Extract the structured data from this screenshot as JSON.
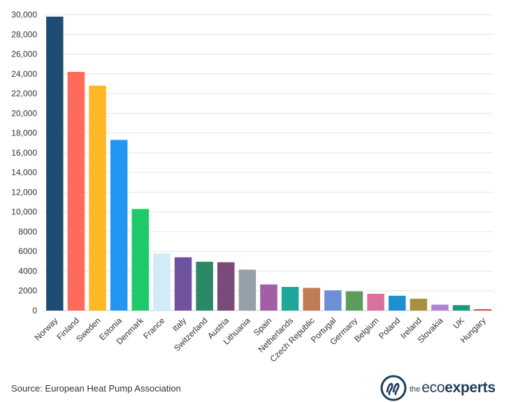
{
  "chart_data": {
    "type": "bar",
    "title": "",
    "xlabel": "",
    "ylabel": "",
    "ylim": [
      0,
      30000
    ],
    "yticks": [
      0,
      2000,
      4000,
      6000,
      8000,
      10000,
      12000,
      14000,
      16000,
      18000,
      20000,
      22000,
      24000,
      26000,
      28000,
      30000
    ],
    "ytick_labels": [
      "0",
      "2000",
      "4000",
      "6000",
      "8000",
      "10,000",
      "12,000",
      "14,000",
      "16,000",
      "18,000",
      "20,000",
      "22,000",
      "24,000",
      "26,000",
      "28,000",
      "30,000"
    ],
    "grid": true,
    "categories": [
      "Norway",
      "Finland",
      "Sweden",
      "Estonia",
      "Denmark",
      "France",
      "Italy",
      "Switzerland",
      "Austria",
      "Lithuania",
      "Spain",
      "Netherlands",
      "Czech Republic",
      "Portugal",
      "Germany",
      "Belgium",
      "Poland",
      "Ireland",
      "Slovakia",
      "UK",
      "Hungary"
    ],
    "values": [
      29800,
      24200,
      22800,
      17300,
      10300,
      5800,
      5400,
      4950,
      4900,
      4150,
      2650,
      2400,
      2300,
      2050,
      1950,
      1700,
      1500,
      1200,
      600,
      550,
      150
    ],
    "colors": [
      "#1d4d72",
      "#ff6b5a",
      "#ffb825",
      "#2196f3",
      "#1ec96a",
      "#d2ebf8",
      "#6f52a0",
      "#2b8a65",
      "#7a4a7a",
      "#95a0a8",
      "#a35ea6",
      "#1fa89a",
      "#c07c55",
      "#6e8fd8",
      "#5c9c5c",
      "#d8729a",
      "#1e8fd0",
      "#a89040",
      "#b083d6",
      "#1a9a7a",
      "#e04a5a"
    ]
  },
  "footer": {
    "source": "Source: European Heat Pump Association",
    "logo_the": "the",
    "logo_eco": "eco",
    "logo_experts": "experts"
  },
  "brand_color": "#1d3d59"
}
